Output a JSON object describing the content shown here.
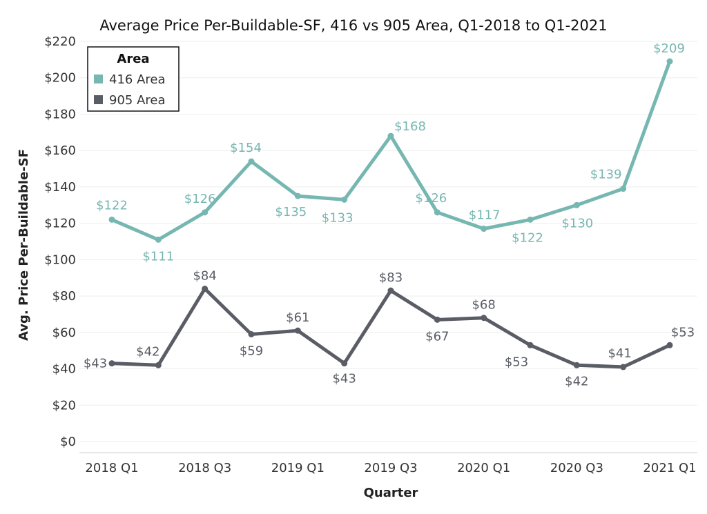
{
  "colors": {
    "s416": "#76b7b2",
    "s905": "#5a5d66",
    "grid": "#eeeeee",
    "axis": "#cccccc"
  },
  "legend": {
    "title": "Area"
  },
  "chart_data": {
    "type": "line",
    "title": "Average Price Per-Buildable-SF, 416 vs 905 Area, Q1-2018 to Q1-2021",
    "xlabel": "Quarter",
    "ylabel": "Avg. Price Per-Buildable-SF",
    "x": [
      "2018 Q1",
      "2018 Q2",
      "2018 Q3",
      "2018 Q4",
      "2019 Q1",
      "2019 Q2",
      "2019 Q3",
      "2019 Q4",
      "2020 Q1",
      "2020 Q2",
      "2020 Q3",
      "2020 Q4",
      "2021 Q1"
    ],
    "xticks": [
      "2018 Q1",
      "2018 Q3",
      "2019 Q1",
      "2019 Q3",
      "2020 Q1",
      "2020 Q3",
      "2021 Q1"
    ],
    "ylim": [
      0,
      220
    ],
    "yticks": [
      "$0",
      "$20",
      "$40",
      "$60",
      "$80",
      "$100",
      "$120",
      "$140",
      "$160",
      "$180",
      "$200",
      "$220"
    ],
    "grid": true,
    "legend_position": "top-left",
    "series": [
      {
        "name": "416 Area",
        "values": [
          122,
          111,
          126,
          154,
          135,
          133,
          168,
          126,
          117,
          122,
          130,
          139,
          209
        ],
        "labels": [
          "$122",
          "$111",
          "$126",
          "$154",
          "$135",
          "$133",
          "$168",
          "$126",
          "$117",
          "$122",
          "$130",
          "$139",
          "$209"
        ]
      },
      {
        "name": "905 Area",
        "values": [
          43,
          42,
          84,
          59,
          61,
          43,
          83,
          67,
          68,
          53,
          42,
          41,
          53
        ],
        "labels": [
          "$43",
          "$42",
          "$84",
          "$59",
          "$61",
          "$43",
          "$83",
          "$67",
          "$68",
          "$53",
          "$42",
          "$41",
          "$53"
        ]
      }
    ]
  }
}
